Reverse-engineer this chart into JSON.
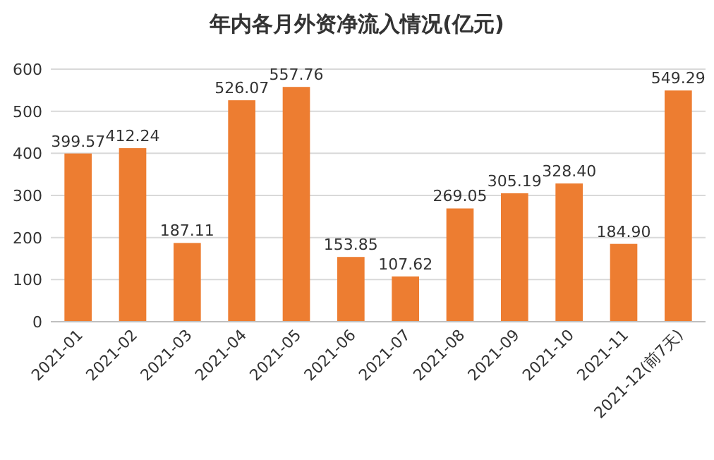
{
  "chart_data": {
    "type": "bar",
    "title": "年内各月外资净流入情况(亿元)",
    "categories": [
      "2021-01",
      "2021-02",
      "2021-03",
      "2021-04",
      "2021-05",
      "2021-06",
      "2021-07",
      "2021-08",
      "2021-09",
      "2021-10",
      "2021-11",
      "2021-12(前7天)"
    ],
    "values": [
      399.57,
      412.24,
      187.11,
      526.07,
      557.76,
      153.85,
      107.62,
      269.05,
      305.19,
      328.4,
      184.9,
      549.29
    ],
    "value_labels": [
      "399.57",
      "412.24",
      "187.11",
      "526.07",
      "557.76",
      "153.85",
      "107.62",
      "269.05",
      "305.19",
      "328.40",
      "184.90",
      "549.29"
    ],
    "color": "#ed7d31",
    "ylim": [
      0,
      600
    ],
    "yticks": [
      0,
      100,
      200,
      300,
      400,
      500,
      600
    ],
    "grid": "y"
  }
}
